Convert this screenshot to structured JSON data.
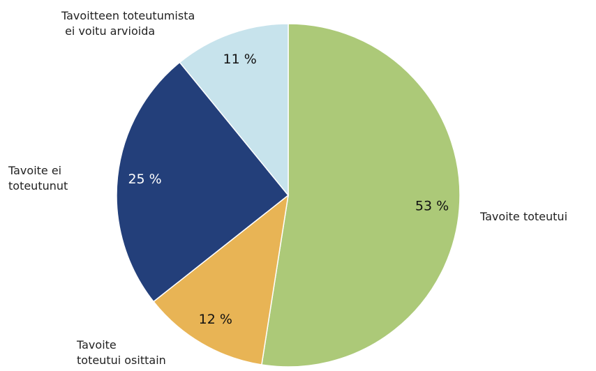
{
  "chart_data": {
    "type": "pie",
    "categories": [
      "Tavoite toteutui",
      "Tavoite\ntoteutui osittain",
      "Tavoite ei\ntoteutunut",
      "Tavoitteen toteutumista\n ei voitu arvioida"
    ],
    "values": [
      53,
      12,
      25,
      11
    ],
    "value_labels": [
      "53 %",
      "12 %",
      "25 %",
      "11 %"
    ],
    "colors": [
      "#acc978",
      "#e8b455",
      "#233f7a",
      "#c7e3ec"
    ],
    "label_colors": [
      "#111111",
      "#111111",
      "#ffffff",
      "#111111"
    ]
  }
}
